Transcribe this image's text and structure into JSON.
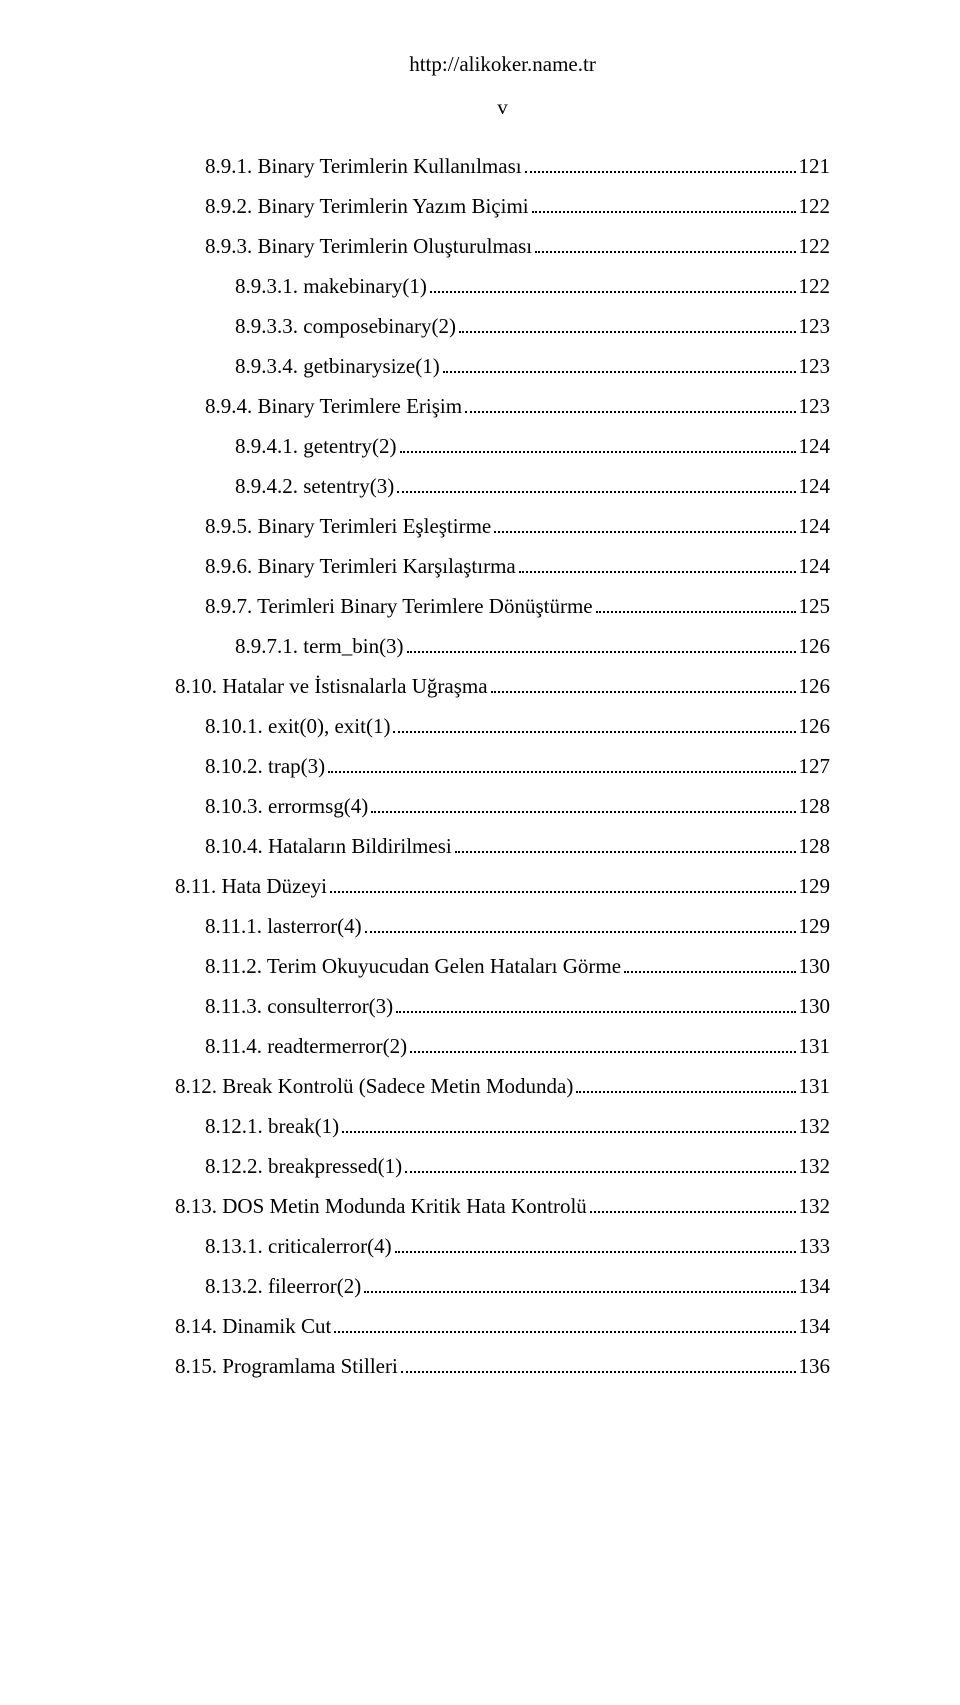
{
  "header_url": "http://alikoker.name.tr",
  "roman_page": "v",
  "entries": [
    {
      "indent": 1,
      "label": "8.9.1. Binary Terimlerin Kullanılması",
      "page": "121"
    },
    {
      "indent": 1,
      "label": "8.9.2. Binary Terimlerin Yazım Biçimi",
      "page": "122"
    },
    {
      "indent": 1,
      "label": "8.9.3. Binary Terimlerin Oluşturulması",
      "page": "122"
    },
    {
      "indent": 2,
      "label": "8.9.3.1. makebinary(1)",
      "page": "122"
    },
    {
      "indent": 2,
      "label": "8.9.3.3. composebinary(2)",
      "page": "123"
    },
    {
      "indent": 2,
      "label": "8.9.3.4. getbinarysize(1)",
      "page": "123"
    },
    {
      "indent": 1,
      "label": "8.9.4. Binary Terimlere Erişim",
      "page": "123"
    },
    {
      "indent": 2,
      "label": "8.9.4.1. getentry(2)",
      "page": "124"
    },
    {
      "indent": 2,
      "label": "8.9.4.2. setentry(3)",
      "page": "124"
    },
    {
      "indent": 1,
      "label": "8.9.5. Binary Terimleri Eşleştirme",
      "page": "124"
    },
    {
      "indent": 1,
      "label": "8.9.6. Binary Terimleri Karşılaştırma",
      "page": "124"
    },
    {
      "indent": 1,
      "label": "8.9.7. Terimleri Binary Terimlere Dönüştürme",
      "page": "125"
    },
    {
      "indent": 2,
      "label": "8.9.7.1. term_bin(3)",
      "page": "126"
    },
    {
      "indent": 0,
      "label": "8.10. Hatalar ve İstisnalarla Uğraşma",
      "page": "126"
    },
    {
      "indent": 1,
      "label": "8.10.1. exit(0), exit(1)",
      "page": "126"
    },
    {
      "indent": 1,
      "label": "8.10.2. trap(3)",
      "page": "127"
    },
    {
      "indent": 1,
      "label": "8.10.3. errormsg(4)",
      "page": "128"
    },
    {
      "indent": 1,
      "label": "8.10.4. Hataların Bildirilmesi",
      "page": "128"
    },
    {
      "indent": 0,
      "label": "8.11. Hata Düzeyi",
      "page": "129"
    },
    {
      "indent": 1,
      "label": "8.11.1. lasterror(4)",
      "page": "129"
    },
    {
      "indent": 1,
      "label": "8.11.2. Terim Okuyucudan Gelen Hataları Görme",
      "page": "130"
    },
    {
      "indent": 1,
      "label": "8.11.3. consulterror(3)",
      "page": "130"
    },
    {
      "indent": 1,
      "label": "8.11.4. readtermerror(2)",
      "page": "131"
    },
    {
      "indent": 0,
      "label": "8.12. Break Kontrolü (Sadece Metin Modunda)",
      "page": "131"
    },
    {
      "indent": 1,
      "label": "8.12.1. break(1)",
      "page": "132"
    },
    {
      "indent": 1,
      "label": "8.12.2. breakpressed(1)",
      "page": "132"
    },
    {
      "indent": 0,
      "label": "8.13. DOS Metin Modunda Kritik Hata Kontrolü",
      "page": "132"
    },
    {
      "indent": 1,
      "label": "8.13.1. criticalerror(4)",
      "page": "133"
    },
    {
      "indent": 1,
      "label": "8.13.2. fileerror(2)",
      "page": "134"
    },
    {
      "indent": 0,
      "label": "8.14. Dinamik Cut",
      "page": "134"
    },
    {
      "indent": 0,
      "label": "8.15. Programlama Stilleri",
      "page": "136"
    }
  ]
}
